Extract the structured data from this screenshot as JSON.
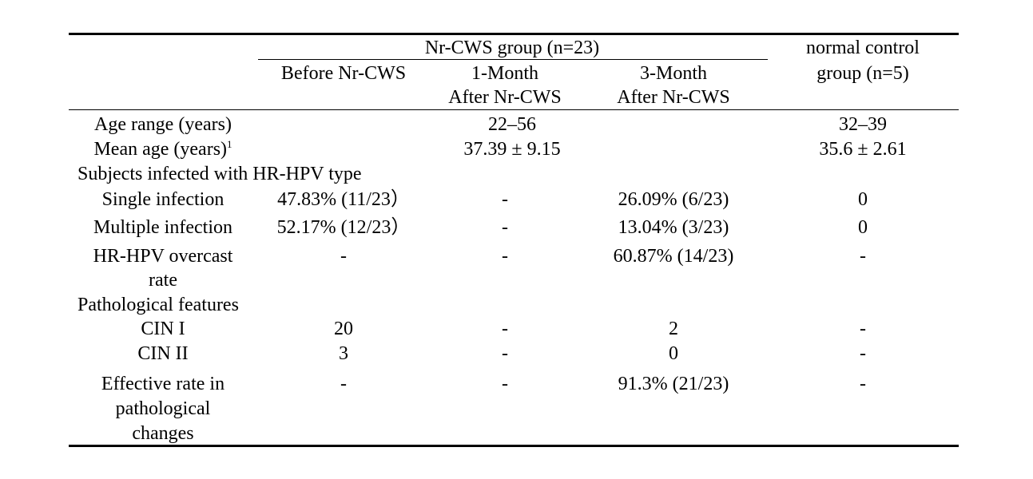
{
  "header": {
    "group_title": "Nr-CWS group (n=23)",
    "col_before": "Before Nr-CWS",
    "col_1month_line1": "1-Month",
    "col_1month_line2": "After Nr-CWS",
    "col_3month_line1": "3-Month",
    "col_3month_line2": "After Nr-CWS",
    "control_line1": "normal control",
    "control_line2": "group (n=5)"
  },
  "rows": {
    "age_range": {
      "label": "Age range (years)",
      "group": "22–56",
      "control": "32–39"
    },
    "mean_age": {
      "label": "Mean age (years)",
      "sup": "1",
      "group": "37.39 ± 9.15",
      "control": "35.6 ± 2.61"
    },
    "hrhpv_section": "Subjects infected with HR-HPV type",
    "single": {
      "label": "Single infection",
      "before": "47.83% (11/23）",
      "m1": "-",
      "m3": "26.09% (6/23)",
      "control": "0"
    },
    "multiple": {
      "label": "Multiple infection",
      "before": "52.17% (12/23）",
      "m1": "-",
      "m3": "13.04% (3/23)",
      "control": "0"
    },
    "overcast": {
      "label_line1": "HR-HPV overcast",
      "label_line2": "rate",
      "before": "-",
      "m1": "-",
      "m3": "60.87% (14/23)",
      "control": "-"
    },
    "path_section": "Pathological features",
    "cin1": {
      "label": "CIN I",
      "before": "20",
      "m1": "-",
      "m3": "2",
      "control": "-"
    },
    "cin2": {
      "label": "CIN II",
      "before": "3",
      "m1": "-",
      "m3": "0",
      "control": "-"
    },
    "effective": {
      "label_line1": "Effective rate in",
      "label_line2": "pathological",
      "label_line3": "changes",
      "before": "-",
      "m1": "-",
      "m3": "91.3% (21/23)",
      "control": "-"
    }
  }
}
